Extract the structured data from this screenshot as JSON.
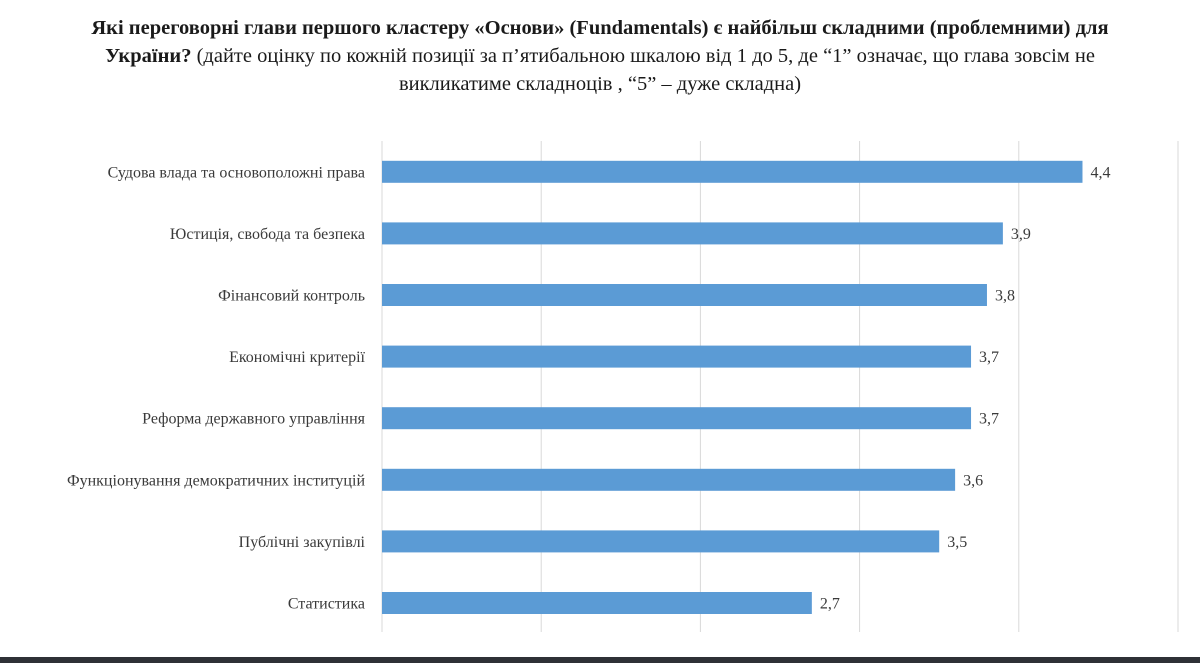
{
  "title": {
    "line1": "Які переговорні глави першого кластеру «Основи» (Fundamentals) є найбільш складними (проблемними) для",
    "line2_bold": "України?",
    "line2_rest": " (дайте оцінку по кожній позиції за п’ятибальною шкалою від 1 до 5, де “1” означає, що глава зовсім не",
    "line3": "викликатиме складноців , “5” – дуже складна)"
  },
  "chart_data": {
    "type": "bar",
    "orientation": "horizontal",
    "categories": [
      "Судова влада та основоположні права",
      "Юстиція, свобода та безпека",
      "Фінансовий контроль",
      "Економічні критерії",
      "Реформа державного управління",
      "Функціонування демократичних інституцій",
      "Публічні закупівлі",
      "Статистика"
    ],
    "values": [
      4.4,
      3.9,
      3.8,
      3.7,
      3.7,
      3.6,
      3.5,
      2.7
    ],
    "value_labels": [
      "4,4",
      "3,9",
      "3,8",
      "3,7",
      "3,7",
      "3,6",
      "3,5",
      "2,7"
    ],
    "xlim": [
      0,
      5
    ],
    "grid": "vertical",
    "bar_color": "#5b9bd5",
    "grid_color": "#d9d9d9"
  }
}
